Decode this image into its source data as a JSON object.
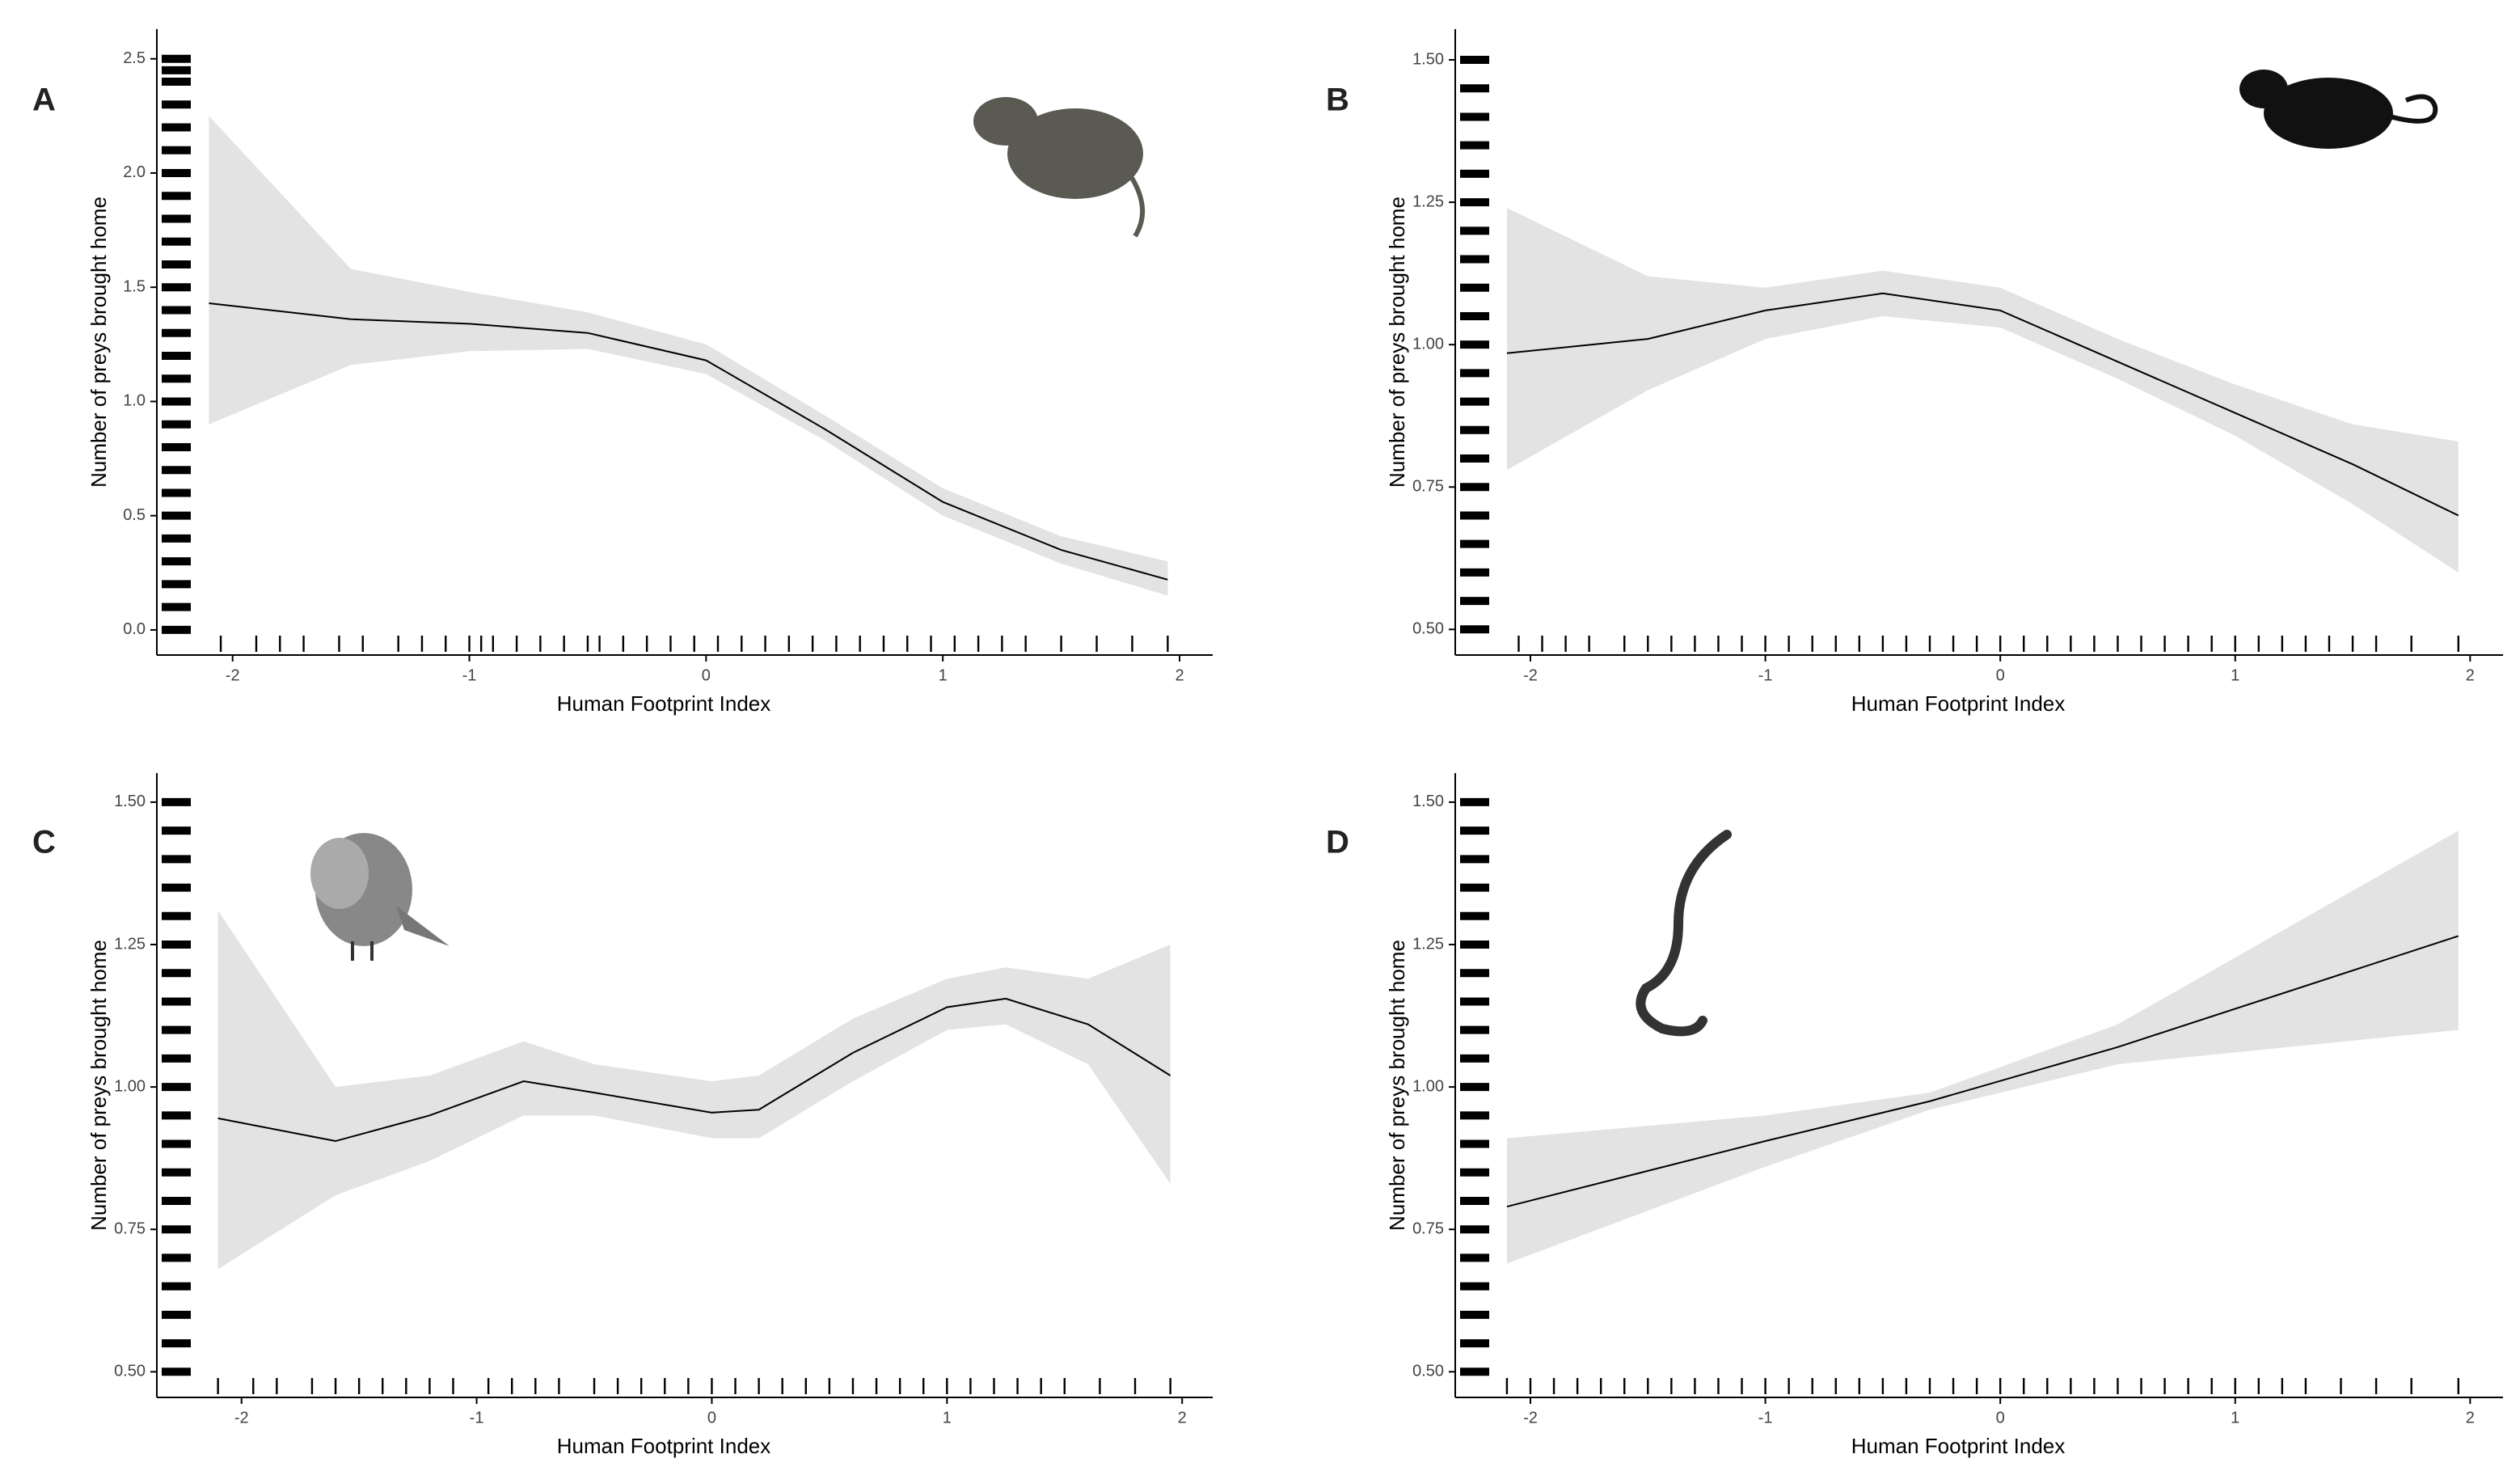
{
  "chart_data": [
    {
      "type": "line",
      "panel_label": "A",
      "xlabel": "Human Footprint Index",
      "ylabel": "Number of preys brought home",
      "xlim": [
        -2.32,
        2.14
      ],
      "ylim": [
        -0.11,
        2.63
      ],
      "xticks": [
        -2,
        -1,
        0,
        1,
        2
      ],
      "yticks": [
        {
          "value": 0,
          "label": "0.0"
        },
        0.5,
        {
          "value": 1,
          "label": "1.0"
        },
        1.5,
        {
          "value": 2,
          "label": "2.0"
        },
        2.5
      ],
      "x": [
        -2.1,
        -1.5,
        -1,
        -0.5,
        0,
        0.5,
        1,
        1.5,
        1.95
      ],
      "values": [
        1.43,
        1.36,
        1.34,
        1.3,
        1.18,
        0.88,
        0.56,
        0.35,
        0.22
      ],
      "lower": [
        0.9,
        1.16,
        1.22,
        1.23,
        1.12,
        0.83,
        0.5,
        0.29,
        0.15
      ],
      "upper": [
        2.25,
        1.58,
        1.48,
        1.39,
        1.25,
        0.94,
        0.62,
        0.41,
        0.3
      ],
      "rug_x": [
        -2.05,
        -1.9,
        -1.8,
        -1.7,
        -1.55,
        -1.45,
        -1.3,
        -1.2,
        -1.1,
        -1,
        -0.95,
        -0.9,
        -0.8,
        -0.7,
        -0.6,
        -0.5,
        -0.45,
        -0.35,
        -0.25,
        -0.15,
        -0.05,
        0.05,
        0.15,
        0.25,
        0.35,
        0.45,
        0.55,
        0.65,
        0.75,
        0.85,
        0.95,
        1.05,
        1.15,
        1.25,
        1.35,
        1.5,
        1.65,
        1.8,
        1.95
      ],
      "rug_y": [
        0,
        0.1,
        0.2,
        0.3,
        0.4,
        0.5,
        0.6,
        0.7,
        0.8,
        0.9,
        1,
        1.1,
        1.2,
        1.3,
        1.4,
        1.5,
        1.6,
        1.7,
        1.8,
        1.9,
        2,
        2.1,
        2.2,
        2.3,
        2.4,
        2.45,
        2.5
      ]
    },
    {
      "type": "line",
      "panel_label": "B",
      "xlabel": "Human Footprint Index",
      "ylabel": "Number of preys brought home",
      "xlim": [
        -2.32,
        2.14
      ],
      "ylim": [
        0.455,
        1.554
      ],
      "xticks": [
        -2,
        -1,
        0,
        1,
        2
      ],
      "yticks": [
        {
          "value": 0.5,
          "label": "0.50"
        },
        0.75,
        {
          "value": 1,
          "label": "1.00"
        },
        1.25,
        {
          "value": 1.5,
          "label": "1.50"
        }
      ],
      "x": [
        -2.1,
        -1.5,
        -1,
        -0.5,
        0,
        0.5,
        1,
        1.5,
        1.95
      ],
      "values": [
        0.985,
        1.01,
        1.06,
        1.09,
        1.06,
        0.97,
        0.88,
        0.79,
        0.7
      ],
      "lower": [
        0.78,
        0.92,
        1.01,
        1.05,
        1.03,
        0.94,
        0.84,
        0.72,
        0.6
      ],
      "upper": [
        1.24,
        1.12,
        1.1,
        1.13,
        1.1,
        1.01,
        0.93,
        0.86,
        0.83
      ],
      "rug_x": [
        -2.05,
        -1.95,
        -1.85,
        -1.75,
        -1.6,
        -1.5,
        -1.4,
        -1.3,
        -1.2,
        -1.1,
        -1,
        -0.9,
        -0.8,
        -0.7,
        -0.6,
        -0.5,
        -0.4,
        -0.3,
        -0.2,
        -0.1,
        0,
        0.1,
        0.2,
        0.3,
        0.4,
        0.5,
        0.6,
        0.7,
        0.8,
        0.9,
        1,
        1.1,
        1.2,
        1.3,
        1.4,
        1.5,
        1.6,
        1.75,
        1.95
      ],
      "rug_y": [
        0.5,
        0.55,
        0.6,
        0.65,
        0.7,
        0.75,
        0.8,
        0.85,
        0.9,
        0.95,
        1,
        1.05,
        1.1,
        1.15,
        1.2,
        1.25,
        1.3,
        1.35,
        1.4,
        1.45,
        1.5
      ]
    },
    {
      "type": "line",
      "panel_label": "C",
      "xlabel": "Human Footprint Index",
      "ylabel": "Number of preys brought home",
      "xlim": [
        -2.36,
        2.13
      ],
      "ylim": [
        0.455,
        1.551
      ],
      "xticks": [
        -2,
        -1,
        0,
        1,
        2
      ],
      "yticks": [
        {
          "value": 0.5,
          "label": "0.50"
        },
        0.75,
        {
          "value": 1,
          "label": "1.00"
        },
        1.25,
        {
          "value": 1.5,
          "label": "1.50"
        }
      ],
      "x": [
        -2.1,
        -1.6,
        -1.2,
        -0.8,
        -0.5,
        0,
        0.2,
        0.6,
        1,
        1.25,
        1.6,
        1.95
      ],
      "values": [
        0.945,
        0.905,
        0.95,
        1.01,
        0.99,
        0.955,
        0.96,
        1.06,
        1.14,
        1.155,
        1.11,
        1.02
      ],
      "lower": [
        0.68,
        0.81,
        0.87,
        0.95,
        0.95,
        0.91,
        0.91,
        1.01,
        1.1,
        1.11,
        1.04,
        0.83
      ],
      "upper": [
        1.31,
        1,
        1.02,
        1.08,
        1.04,
        1.01,
        1.02,
        1.12,
        1.19,
        1.21,
        1.19,
        1.25
      ],
      "rug_x": [
        -2.1,
        -1.95,
        -1.85,
        -1.7,
        -1.6,
        -1.5,
        -1.4,
        -1.3,
        -1.2,
        -1.1,
        -0.95,
        -0.85,
        -0.75,
        -0.65,
        -0.5,
        -0.4,
        -0.3,
        -0.2,
        -0.1,
        0,
        0.1,
        0.2,
        0.3,
        0.4,
        0.5,
        0.6,
        0.7,
        0.8,
        0.9,
        1,
        1.1,
        1.2,
        1.3,
        1.4,
        1.5,
        1.65,
        1.8,
        1.95
      ],
      "rug_y": [
        0.5,
        0.55,
        0.6,
        0.65,
        0.7,
        0.75,
        0.8,
        0.85,
        0.9,
        0.95,
        1,
        1.05,
        1.1,
        1.15,
        1.2,
        1.25,
        1.3,
        1.35,
        1.4,
        1.45,
        1.5
      ]
    },
    {
      "type": "line",
      "panel_label": "D",
      "xlabel": "Human Footprint Index",
      "ylabel": "Number of preys brought home",
      "xlim": [
        -2.32,
        2.14
      ],
      "ylim": [
        0.455,
        1.551
      ],
      "xticks": [
        -2,
        -1,
        0,
        1,
        2
      ],
      "yticks": [
        {
          "value": 0.5,
          "label": "0.50"
        },
        0.75,
        {
          "value": 1,
          "label": "1.00"
        },
        1.25,
        {
          "value": 1.5,
          "label": "1.50"
        }
      ],
      "x": [
        -2.1,
        -1,
        -0.3,
        0.5,
        1.95
      ],
      "values": [
        0.79,
        0.905,
        0.975,
        1.07,
        1.265
      ],
      "lower": [
        0.69,
        0.86,
        0.96,
        1.04,
        1.1
      ],
      "upper": [
        0.91,
        0.95,
        0.99,
        1.11,
        1.45
      ],
      "rug_x": [
        -2.1,
        -2,
        -1.9,
        -1.8,
        -1.7,
        -1.6,
        -1.5,
        -1.4,
        -1.3,
        -1.2,
        -1.1,
        -1,
        -0.9,
        -0.8,
        -0.7,
        -0.6,
        -0.5,
        -0.4,
        -0.3,
        -0.2,
        -0.1,
        0,
        0.1,
        0.2,
        0.3,
        0.4,
        0.5,
        0.6,
        0.7,
        0.8,
        0.9,
        1,
        1.1,
        1.2,
        1.3,
        1.45,
        1.6,
        1.75,
        1.95
      ],
      "rug_y": [
        0.5,
        0.55,
        0.6,
        0.65,
        0.7,
        0.75,
        0.8,
        0.85,
        0.9,
        0.95,
        1,
        1.05,
        1.1,
        1.15,
        1.2,
        1.25,
        1.3,
        1.35,
        1.4,
        1.45,
        1.5
      ]
    }
  ]
}
